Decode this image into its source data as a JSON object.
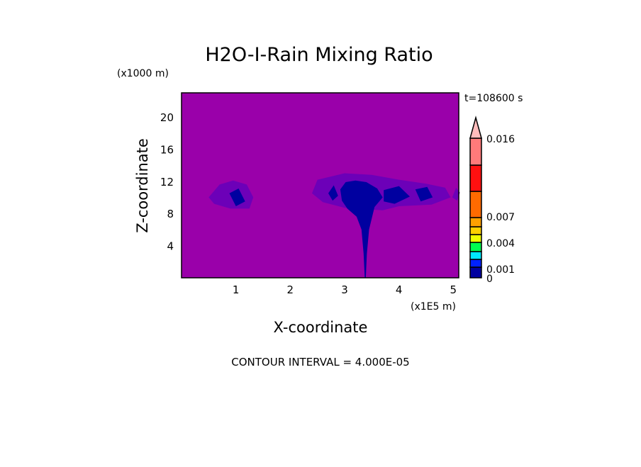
{
  "chart_data": {
    "type": "heatmap",
    "title": "H2O-I-Rain Mixing Ratio",
    "xlabel": "X-coordinate",
    "ylabel": "Z-coordinate",
    "x_units": "(x1E5 m)",
    "y_units": "(x1000 m)",
    "time_label": "t=108600 s",
    "footer": "CONTOUR INTERVAL = 4.000E-05",
    "xlim": [
      0,
      5.1
    ],
    "ylim": [
      0,
      23
    ],
    "x_ticks": [
      "1",
      "2",
      "3",
      "4",
      "5"
    ],
    "x_tick_values": [
      1,
      2,
      3,
      4,
      5
    ],
    "y_ticks": [
      "4",
      "8",
      "12",
      "16",
      "20"
    ],
    "y_tick_values": [
      4,
      8,
      12,
      16,
      20
    ],
    "background_color": "#9a00aa",
    "colorbar": {
      "labels": [
        "0",
        "0.001",
        "0.004",
        "0.007",
        "0.016"
      ],
      "label_values": [
        0,
        0.001,
        0.004,
        0.007,
        0.016
      ],
      "levels": [
        0,
        0.001,
        0.002,
        0.003,
        0.004,
        0.005,
        0.006,
        0.007,
        0.01,
        0.013,
        0.016
      ],
      "colors": [
        "#0000a0",
        "#0022ff",
        "#00e8ff",
        "#00ff50",
        "#f0ff00",
        "#ffd000",
        "#ffa000",
        "#ff6a00",
        "#ff1010",
        "#ff7a7a"
      ],
      "extend_color": "#ffbcbc"
    },
    "regions": [
      {
        "level": "faint",
        "color": "#6c00b8",
        "points": [
          [
            2.4,
            10.5
          ],
          [
            2.5,
            12.2
          ],
          [
            3.0,
            13.0
          ],
          [
            3.5,
            12.8
          ],
          [
            4.0,
            12.2
          ],
          [
            4.5,
            11.7
          ],
          [
            4.85,
            11.2
          ],
          [
            4.95,
            10.0
          ],
          [
            4.6,
            9.1
          ],
          [
            4.0,
            8.9
          ],
          [
            3.7,
            8.4
          ],
          [
            3.0,
            8.7
          ],
          [
            2.6,
            9.4
          ]
        ]
      },
      {
        "level": "faint",
        "color": "#6c00b8",
        "points": [
          [
            0.5,
            10.0
          ],
          [
            0.7,
            11.6
          ],
          [
            0.95,
            12.1
          ],
          [
            1.2,
            11.6
          ],
          [
            1.32,
            10.0
          ],
          [
            1.25,
            8.6
          ],
          [
            0.9,
            8.6
          ],
          [
            0.6,
            9.2
          ]
        ]
      },
      {
        "level": "faint",
        "color": "#6c00b8",
        "points": [
          [
            4.98,
            10.0
          ],
          [
            5.05,
            11.2
          ],
          [
            5.12,
            10.6
          ],
          [
            5.07,
            9.6
          ]
        ]
      },
      {
        "level": "0-0.001",
        "color": "#0000a0",
        "points": [
          [
            3.37,
            0
          ],
          [
            3.35,
            3
          ],
          [
            3.31,
            6
          ],
          [
            3.22,
            7.6
          ],
          [
            3.05,
            8.6
          ],
          [
            2.95,
            9.6
          ],
          [
            2.92,
            11.0
          ],
          [
            3.02,
            11.9
          ],
          [
            3.2,
            12.1
          ],
          [
            3.4,
            11.9
          ],
          [
            3.6,
            11.1
          ],
          [
            3.7,
            10.0
          ],
          [
            3.55,
            8.8
          ],
          [
            3.45,
            6
          ],
          [
            3.41,
            3
          ],
          [
            3.39,
            0
          ]
        ]
      },
      {
        "level": "0-0.001",
        "color": "#0000a0",
        "points": [
          [
            3.72,
            10.9
          ],
          [
            4.0,
            11.4
          ],
          [
            4.2,
            10.1
          ],
          [
            3.92,
            9.2
          ],
          [
            3.72,
            9.5
          ]
        ]
      },
      {
        "level": "0-0.001",
        "color": "#0000a0",
        "points": [
          [
            4.3,
            11.0
          ],
          [
            4.52,
            11.3
          ],
          [
            4.62,
            10.0
          ],
          [
            4.4,
            9.5
          ]
        ]
      },
      {
        "level": "0-0.001",
        "color": "#0000a0",
        "points": [
          [
            0.88,
            10.5
          ],
          [
            1.05,
            11.1
          ],
          [
            1.17,
            9.5
          ],
          [
            1.0,
            8.9
          ]
        ]
      },
      {
        "level": "0-0.001",
        "color": "#0000a0",
        "points": [
          [
            2.7,
            10.5
          ],
          [
            2.8,
            11.5
          ],
          [
            2.88,
            10.2
          ],
          [
            2.78,
            9.6
          ]
        ]
      }
    ]
  }
}
